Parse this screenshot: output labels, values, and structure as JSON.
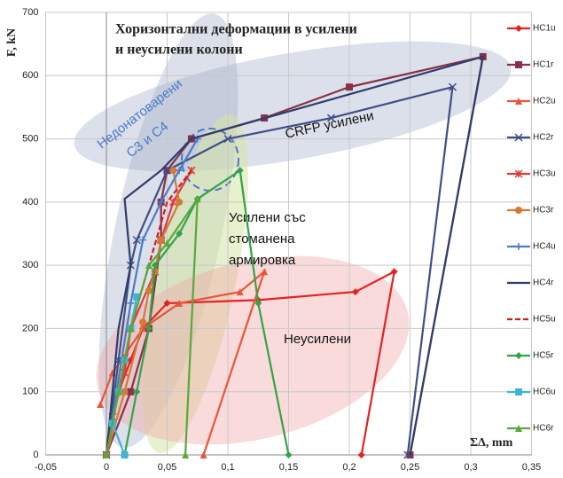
{
  "chart_data": {
    "type": "line",
    "title_lines": [
      "Хоризонтални деформации в усилени",
      "и неусилени колони"
    ],
    "y_label": "F, kN",
    "x_label": "ΣΔ, mm",
    "annotations": [
      "Недонатоварени",
      "C3 и C4",
      "CRFP усилени",
      "Усилени със",
      "стоманена",
      "армировка",
      "Неусилени"
    ],
    "xlim": [
      -0.05,
      0.35
    ],
    "ylim": [
      0,
      700
    ],
    "xticks": [
      {
        "value": -0.05,
        "label": "-0,05"
      },
      0,
      {
        "value": 0.05,
        "label": "0,05"
      },
      {
        "value": 0.1,
        "label": "0,1"
      },
      {
        "value": 0.15,
        "label": "0,15"
      },
      {
        "value": 0.2,
        "label": "0,2"
      },
      {
        "value": 0.25,
        "label": "0,25"
      },
      {
        "value": 0.3,
        "label": "0,3"
      },
      {
        "value": 0.35,
        "label": "0,35"
      }
    ],
    "yticks": [
      0,
      100,
      200,
      300,
      400,
      500,
      600,
      700
    ],
    "grid": true,
    "legend": "right",
    "series": [
      {
        "name": "HC1u",
        "color": "#e32222",
        "marker": "diamond",
        "x": [
          0,
          0.005,
          0.01,
          0.02,
          0.03,
          0.05,
          0.125,
          0.205,
          0.237,
          0.21
        ],
        "values": [
          0,
          50,
          100,
          150,
          200,
          240,
          245,
          258,
          290,
          0
        ]
      },
      {
        "name": "HC1r",
        "color": "#8a3048",
        "marker": "square",
        "x": [
          0,
          0.02,
          0.035,
          0.045,
          0.045,
          0.05,
          0.07,
          0.13,
          0.2,
          0.31,
          0.25
        ],
        "values": [
          0,
          100,
          200,
          340,
          400,
          450,
          500,
          533,
          582,
          630,
          0
        ]
      },
      {
        "name": "HC2u",
        "color": "#e8553a",
        "marker": "triangle",
        "x": [
          -0.005,
          0.005,
          0.03,
          0.06,
          0.11,
          0.13,
          0.08
        ],
        "values": [
          80,
          130,
          200,
          240,
          258,
          290,
          0
        ]
      },
      {
        "name": "HC2r",
        "color": "#3f4f86",
        "marker": "x",
        "x": [
          0,
          0.01,
          0.02,
          0.025,
          0.05,
          0.1,
          0.185,
          0.285,
          0.248
        ],
        "values": [
          0,
          150,
          300,
          340,
          450,
          500,
          533,
          582,
          0
        ]
      },
      {
        "name": "HC3u",
        "color": "#e03a3a",
        "marker": "star",
        "x": [
          0,
          0.005,
          0.015,
          0.02,
          0.04,
          0.045,
          0.055,
          0.07
        ],
        "values": [
          0,
          60,
          130,
          200,
          290,
          340,
          400,
          450
        ]
      },
      {
        "name": "HC3r",
        "color": "#d37a35",
        "marker": "circle",
        "x": [
          0,
          0.015,
          0.03,
          0.035,
          0.04,
          0.045,
          0.06,
          0.055
        ],
        "values": [
          0,
          100,
          210,
          260,
          290,
          340,
          400,
          450
        ]
      },
      {
        "name": "HC4u",
        "color": "#4c7cc2",
        "marker": "plus",
        "x": [
          0,
          0.01,
          0.02,
          0.03,
          0.045,
          0.06,
          0.075
        ],
        "values": [
          0,
          120,
          240,
          340,
          400,
          450,
          500
        ]
      },
      {
        "name": "HC4r",
        "color": "#2d3d6c",
        "marker": "none",
        "x": [
          0,
          0.01,
          0.02,
          0.015,
          0.045,
          0.07,
          0.31,
          0.25
        ],
        "values": [
          0,
          200,
          300,
          405,
          450,
          500,
          630,
          0
        ]
      },
      {
        "name": "HC5u",
        "color": "#c82222",
        "marker": "dash",
        "x": [
          0,
          0.01,
          0.02,
          0.035,
          0.05,
          0.07
        ],
        "values": [
          0,
          100,
          200,
          300,
          400,
          450
        ]
      },
      {
        "name": "HC5r",
        "color": "#33a347",
        "marker": "diamond",
        "x": [
          0.015,
          0.025,
          0.035,
          0.04,
          0.06,
          0.075,
          0.11,
          0.125,
          0.15
        ],
        "values": [
          0,
          100,
          200,
          300,
          350,
          405,
          450,
          240,
          0
        ]
      },
      {
        "name": "HC6u",
        "color": "#3fb3d6",
        "marker": "square",
        "x": [
          0.015,
          0.005,
          0.01,
          0.015,
          0.02,
          0.025
        ],
        "values": [
          0,
          50,
          100,
          150,
          200,
          250
        ]
      },
      {
        "name": "HC6r",
        "color": "#58a83a",
        "marker": "triangle",
        "x": [
          0,
          0.01,
          0.02,
          0.035,
          0.05,
          0.075,
          0.065
        ],
        "values": [
          0,
          100,
          200,
          300,
          335,
          405,
          0
        ]
      }
    ]
  }
}
